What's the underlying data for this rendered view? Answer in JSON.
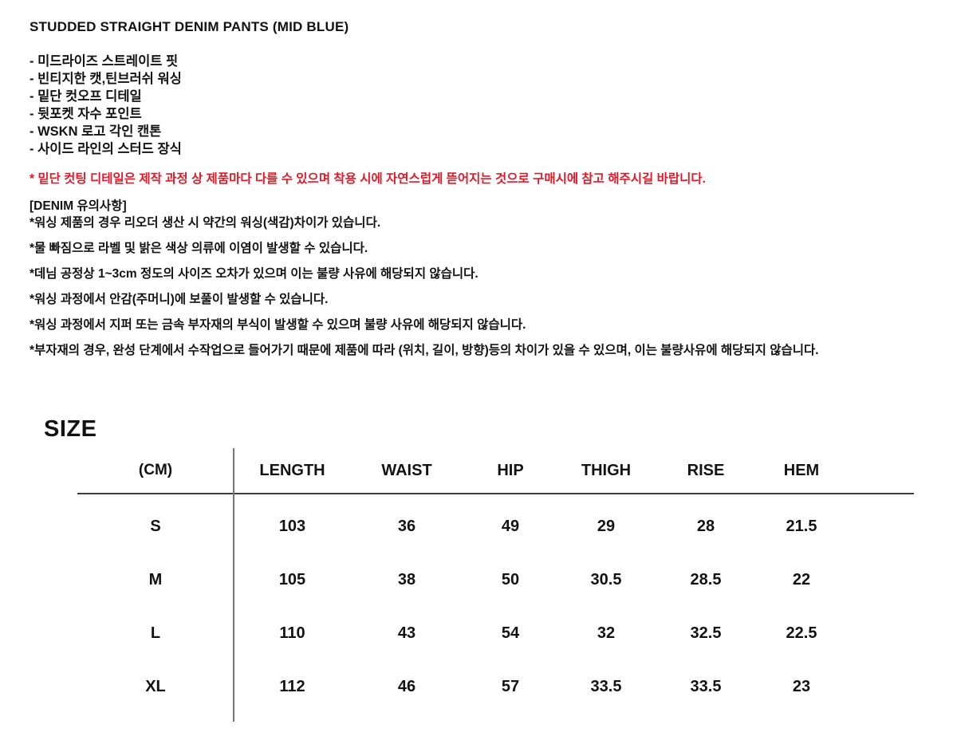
{
  "colors": {
    "text": "#121212",
    "warning_red": "#e01a28",
    "header_rule": "#3d3d3d",
    "vertical_rule": "#757575"
  },
  "product": {
    "title": "STUDDED STRAIGHT DENIM PANTS (MID BLUE)",
    "features": [
      "- 미드라이즈 스트레이트 핏",
      "- 빈티지한 캣,틴브러쉬 워싱",
      "- 밑단 컷오프 디테일",
      "- 뒷포켓 자수 포인트",
      "- WSKN 로고 각인 캔톤",
      "- 사이드 라인의 스터드 장식"
    ],
    "hem_warning": "* 밑단 컷팅 디테일은 제작 과정 상 제품마다 다를 수 있으며 착용 시에 자연스럽게 뜯어지는 것으로 구매시에 참고 해주시길 바랍니다.",
    "denim_caution_title": "[DENIM 유의사항]",
    "denim_cautions": [
      "*워싱 제품의 경우 리오더 생산 시 약간의 워싱(색감)차이가 있습니다.",
      "*물 빠짐으로 라벨 및 밝은 색상 의류에 이염이 발생할 수 있습니다.",
      "*데님 공정상 1~3cm 정도의 사이즈 오차가 있으며 이는 불량 사유에 해당되지 않습니다.",
      "*워싱 과정에서 안감(주머니)에 보풀이 발생할 수 있습니다.",
      "*워싱 과정에서 지퍼 또는 금속 부자재의 부식이 발생할 수 있으며 불량 사유에 해당되지 않습니다.",
      "*부자재의 경우, 완성 단계에서 수작업으로 들어가기 때문에 제품에 따라 (위치, 길이, 방향)등의 차이가 있을 수 있으며, 이는 불량사유에 해당되지 않습니다."
    ]
  },
  "size_section": {
    "heading": "SIZE",
    "unit_label": "(CM)",
    "columns": [
      "LENGTH",
      "WAIST",
      "HIP",
      "THIGH",
      "RISE",
      "HEM"
    ],
    "rows": [
      {
        "size": "S",
        "values": [
          "103",
          "36",
          "49",
          "29",
          "28",
          "21.5"
        ]
      },
      {
        "size": "M",
        "values": [
          "105",
          "38",
          "50",
          "30.5",
          "28.5",
          "22"
        ]
      },
      {
        "size": "L",
        "values": [
          "110",
          "43",
          "54",
          "32",
          "32.5",
          "22.5"
        ]
      },
      {
        "size": "XL",
        "values": [
          "112",
          "46",
          "57",
          "33.5",
          "33.5",
          "23"
        ]
      }
    ]
  }
}
